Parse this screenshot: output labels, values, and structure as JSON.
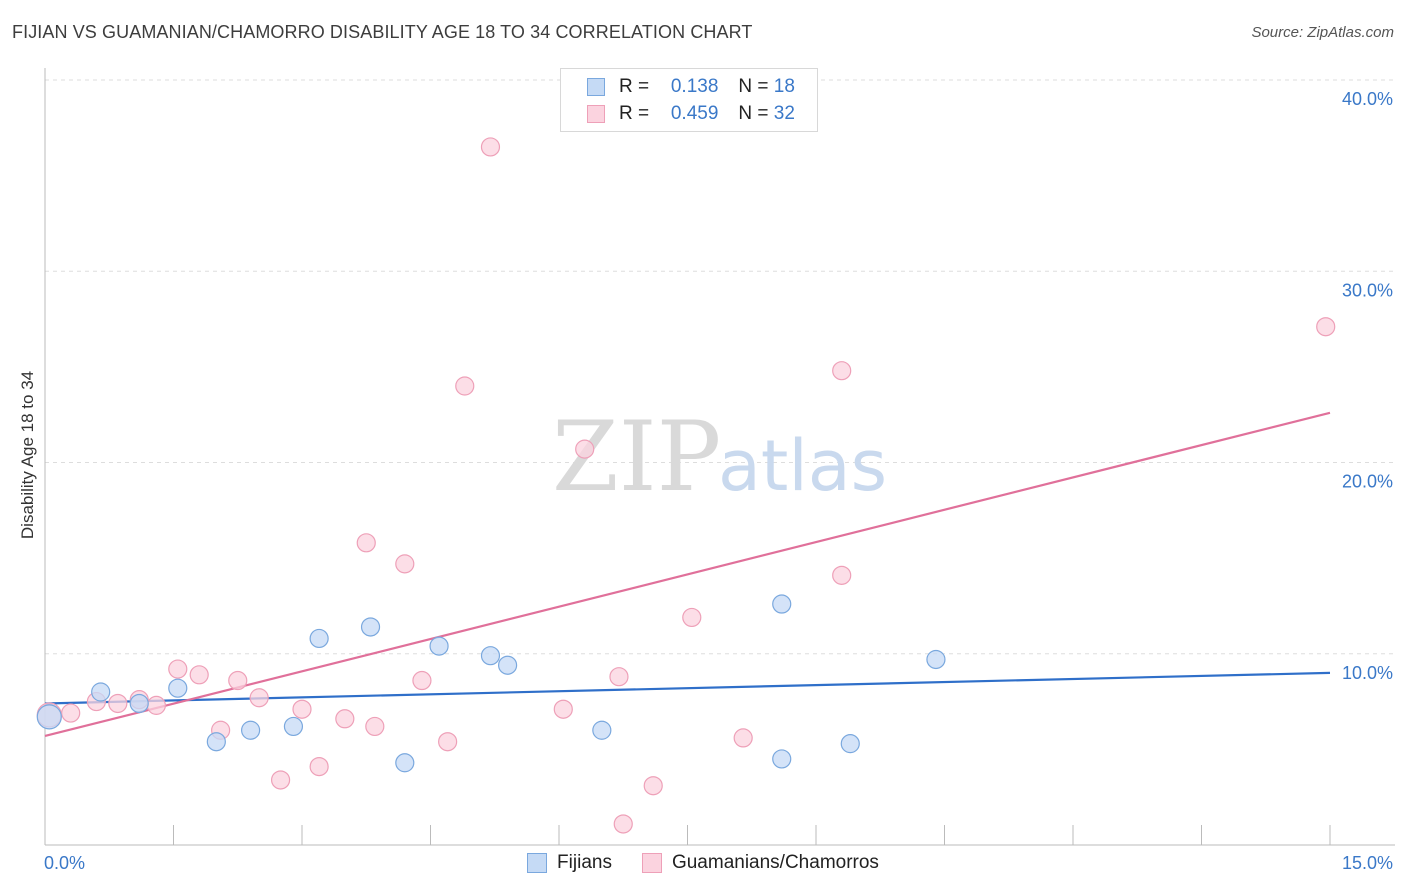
{
  "title": "FIJIAN VS GUAMANIAN/CHAMORRO DISABILITY AGE 18 TO 34 CORRELATION CHART",
  "source": "Source: ZipAtlas.com",
  "watermark": {
    "zip": "ZIP",
    "atlas": "atlas"
  },
  "legend": {
    "rows": [
      {
        "r_label": "R =",
        "r_value": "0.138",
        "n_label": "N =",
        "n_value": "18"
      },
      {
        "r_label": "R =",
        "r_value": "0.459",
        "n_label": "N =",
        "n_value": "32"
      }
    ]
  },
  "colors": {
    "fijians_fill": "#c5daf5",
    "fijians_stroke": "#7aa8de",
    "fijians_line": "#2f6fc9",
    "guam_fill": "#fbd3df",
    "guam_stroke": "#eea0b8",
    "guam_line": "#e0709a",
    "tick_color": "#3a78c8",
    "grid": "#dddddd"
  },
  "chart_data": {
    "type": "scatter",
    "title": "FIJIAN VS GUAMANIAN/CHAMORRO DISABILITY AGE 18 TO 34 CORRELATION CHART",
    "ylabel": "Disability Age 18 to 34",
    "xlabel": "",
    "xlim": [
      0,
      15
    ],
    "ylim": [
      0,
      40
    ],
    "x_tick_labels": [
      "0.0%",
      "15.0%"
    ],
    "y_ticks": [
      10,
      20,
      30,
      40
    ],
    "y_tick_labels": [
      "10.0%",
      "20.0%",
      "30.0%",
      "40.0%"
    ],
    "grid": true,
    "legend_position": "bottom",
    "series": [
      {
        "name": "Fijians",
        "points": [
          [
            0.05,
            6.7
          ],
          [
            0.65,
            8.0
          ],
          [
            1.1,
            7.4
          ],
          [
            1.55,
            8.2
          ],
          [
            2.0,
            5.4
          ],
          [
            2.4,
            6.0
          ],
          [
            2.9,
            6.2
          ],
          [
            3.2,
            10.8
          ],
          [
            3.8,
            11.4
          ],
          [
            4.2,
            4.3
          ],
          [
            4.6,
            10.4
          ],
          [
            5.2,
            9.9
          ],
          [
            5.4,
            9.4
          ],
          [
            6.5,
            6.0
          ],
          [
            8.6,
            12.6
          ],
          [
            8.6,
            4.5
          ],
          [
            9.4,
            5.3
          ],
          [
            10.4,
            9.7
          ]
        ],
        "trend": {
          "x": [
            0,
            15
          ],
          "y": [
            7.4,
            9.0
          ]
        }
      },
      {
        "name": "Guamanians/Chamorros",
        "points": [
          [
            0.05,
            6.8
          ],
          [
            0.3,
            6.9
          ],
          [
            0.6,
            7.5
          ],
          [
            0.85,
            7.4
          ],
          [
            1.1,
            7.6
          ],
          [
            1.3,
            7.3
          ],
          [
            1.55,
            9.2
          ],
          [
            1.8,
            8.9
          ],
          [
            2.05,
            6.0
          ],
          [
            2.25,
            8.6
          ],
          [
            2.5,
            7.7
          ],
          [
            2.75,
            3.4
          ],
          [
            3.0,
            7.1
          ],
          [
            3.2,
            4.1
          ],
          [
            3.5,
            6.6
          ],
          [
            3.75,
            15.8
          ],
          [
            3.85,
            6.2
          ],
          [
            4.2,
            14.7
          ],
          [
            4.4,
            8.6
          ],
          [
            4.7,
            5.4
          ],
          [
            4.9,
            24.0
          ],
          [
            5.2,
            36.5
          ],
          [
            6.05,
            7.1
          ],
          [
            6.3,
            20.7
          ],
          [
            6.7,
            8.8
          ],
          [
            6.75,
            1.1
          ],
          [
            7.1,
            3.1
          ],
          [
            7.55,
            11.9
          ],
          [
            8.15,
            5.6
          ],
          [
            9.3,
            24.8
          ],
          [
            9.3,
            14.1
          ],
          [
            14.95,
            27.1
          ]
        ],
        "trend": {
          "x": [
            0,
            15
          ],
          "y": [
            5.7,
            22.6
          ]
        }
      }
    ]
  },
  "bottom_legend": [
    {
      "label": "Fijians"
    },
    {
      "label": "Guamanians/Chamorros"
    }
  ]
}
